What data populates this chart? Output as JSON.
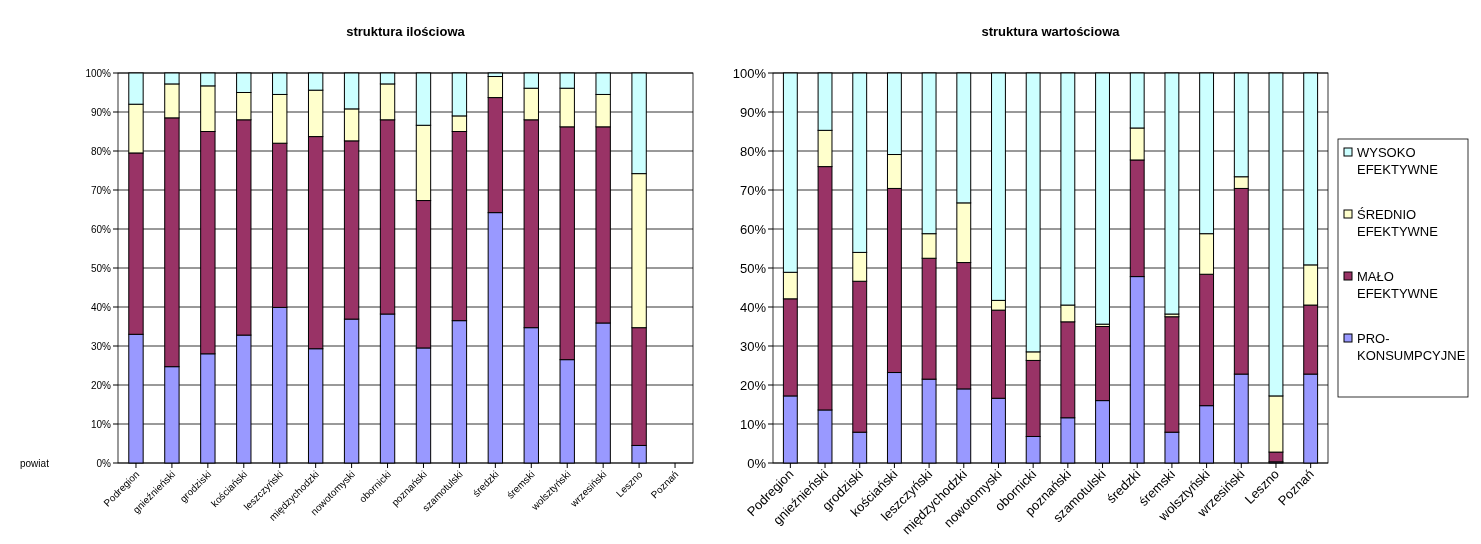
{
  "chart_data": [
    {
      "type": "bar",
      "title": "struktura ilościowa",
      "xlabel": "powiat",
      "stacked": true,
      "grid": "y",
      "legend": false,
      "categories": [
        "Podregion",
        "gnieźnieński",
        "grodziski",
        "kościański",
        "leszczyński",
        "międzychodzki",
        "nowotomyski",
        "obornicki",
        "poznański",
        "szamotulski",
        "średzki",
        "śremski",
        "wolsztyński",
        "wrzesiński",
        "Leszno",
        "Poznań"
      ],
      "ylim": [
        0,
        100
      ],
      "yticks": [
        {
          "value": 0,
          "label": "0%"
        },
        {
          "value": 10,
          "label": "10%"
        },
        {
          "value": 20,
          "label": "20%"
        },
        {
          "value": 30,
          "label": "30%"
        },
        {
          "value": 40,
          "label": "40%"
        },
        {
          "value": 50,
          "label": "50%"
        },
        {
          "value": 60,
          "label": "60%"
        },
        {
          "value": 70,
          "label": "70%"
        },
        {
          "value": 80,
          "label": "80%"
        },
        {
          "value": 90,
          "label": "90%"
        },
        {
          "value": 100,
          "label": "100%"
        }
      ],
      "series": [
        {
          "color": "#9999ff",
          "values": [
            33,
            24.7,
            28,
            32.8,
            39.9,
            29.3,
            36.9,
            38.2,
            29.5,
            36.5,
            64.2,
            34.7,
            26.5,
            35.9,
            4.5,
            null
          ]
        },
        {
          "color": "#993366",
          "values": [
            46.5,
            63.8,
            57,
            55.2,
            42.1,
            54.4,
            45.7,
            49.8,
            37.8,
            48.5,
            29.5,
            53.3,
            59.7,
            50.3,
            30.2,
            null
          ]
        },
        {
          "color": "#ffffcc",
          "values": [
            12.5,
            8.7,
            11.7,
            7,
            12.5,
            11.9,
            8.2,
            9.2,
            19.3,
            4,
            5.4,
            8.1,
            9.9,
            8.3,
            39.5,
            null
          ]
        },
        {
          "color": "#ccffff",
          "values": [
            8,
            2.8,
            3.3,
            5,
            5.5,
            4.4,
            9.2,
            2.8,
            13.4,
            11,
            0.9,
            3.9,
            3.9,
            5.5,
            25.8,
            null
          ]
        }
      ]
    },
    {
      "type": "bar",
      "title": "struktura wartościowa",
      "stacked": true,
      "grid": "y",
      "legend": "right",
      "categories": [
        "Podregion",
        "gnieźnieński",
        "grodziski",
        "kościański",
        "leszczyński",
        "międzychodzki",
        "nowotomyski",
        "obornicki",
        "poznański",
        "szamotulski",
        "średzki",
        "śremski",
        "wolsztyński",
        "wrzesiński",
        "Leszno",
        "Poznań"
      ],
      "ylim": [
        0,
        100
      ],
      "yticks": [
        {
          "value": 0,
          "label": "0%"
        },
        {
          "value": 10,
          "label": "10%"
        },
        {
          "value": 20,
          "label": "20%"
        },
        {
          "value": 30,
          "label": "30%"
        },
        {
          "value": 40,
          "label": "40%"
        },
        {
          "value": 50,
          "label": "50%"
        },
        {
          "value": 60,
          "label": "60%"
        },
        {
          "value": 70,
          "label": "70%"
        },
        {
          "value": 80,
          "label": "80%"
        },
        {
          "value": 90,
          "label": "90%"
        },
        {
          "value": 100,
          "label": "100%"
        }
      ],
      "series": [
        {
          "name": "PRO-KONSUMPCYJNE",
          "color": "#9999ff",
          "values": [
            17.2,
            13.6,
            7.9,
            23.2,
            21.5,
            19,
            16.6,
            6.8,
            11.6,
            16,
            47.8,
            7.9,
            14.7,
            22.8,
            0.3,
            22.8
          ]
        },
        {
          "name": "MAŁO EFEKTYWNE",
          "color": "#993366",
          "values": [
            24.9,
            62.4,
            38.7,
            47.2,
            31,
            32.4,
            22.6,
            19.5,
            24.6,
            19,
            29.9,
            29.6,
            33.7,
            47.6,
            2.5,
            17.7
          ]
        },
        {
          "name": "ŚREDNIO EFEKTYWNE",
          "color": "#ffffcc",
          "values": [
            6.8,
            9.3,
            7.4,
            8.7,
            6.3,
            15.3,
            2.5,
            2.2,
            4.3,
            0.6,
            8.2,
            0.7,
            10.4,
            3,
            14.4,
            10.3
          ]
        },
        {
          "name": "WYSOKO EFEKTYWNE",
          "color": "#ccffff",
          "values": [
            51.1,
            14.7,
            46,
            20.9,
            41.2,
            33.3,
            58.3,
            71.5,
            59.5,
            64.4,
            14.1,
            61.8,
            41.2,
            26.6,
            82.8,
            49.2
          ]
        }
      ]
    }
  ]
}
